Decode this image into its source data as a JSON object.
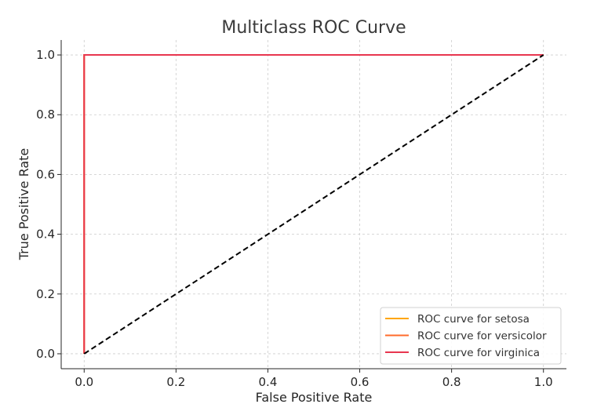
{
  "chart_data": {
    "type": "line",
    "title": "Multiclass ROC Curve",
    "xlabel": "False Positive Rate",
    "ylabel": "True Positive Rate",
    "xlim": [
      -0.05,
      1.05
    ],
    "ylim": [
      -0.05,
      1.05
    ],
    "x_ticks": [
      0.0,
      0.2,
      0.4,
      0.6,
      0.8,
      1.0
    ],
    "y_ticks": [
      0.0,
      0.2,
      0.4,
      0.6,
      0.8,
      1.0
    ],
    "x_tick_labels": [
      "0.0",
      "0.2",
      "0.4",
      "0.6",
      "0.8",
      "1.0"
    ],
    "y_tick_labels": [
      "0.0",
      "0.2",
      "0.4",
      "0.6",
      "0.8",
      "1.0"
    ],
    "grid": true,
    "legend_position": "lower-right",
    "series": [
      {
        "name": "ROC curve for setosa",
        "color": "#ffa500",
        "x": [
          0.0,
          0.0,
          1.0
        ],
        "y": [
          0.0,
          1.0,
          1.0
        ]
      },
      {
        "name": "ROC curve for versicolor",
        "color": "#ff6b2b",
        "x": [
          0.0,
          0.0,
          1.0
        ],
        "y": [
          0.0,
          1.0,
          1.0
        ]
      },
      {
        "name": "ROC curve for virginica",
        "color": "#e8364f",
        "x": [
          0.0,
          0.0,
          1.0
        ],
        "y": [
          0.0,
          1.0,
          1.0
        ]
      }
    ],
    "reference_line": {
      "color": "#000000",
      "style": "dashed",
      "x": [
        0.0,
        1.0
      ],
      "y": [
        0.0,
        1.0
      ]
    }
  }
}
